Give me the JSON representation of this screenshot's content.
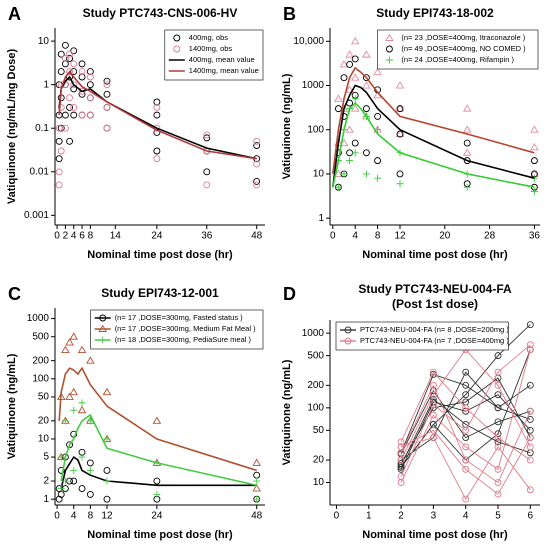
{
  "chart_data": [
    {
      "type": "line",
      "panel_label": "A",
      "title": "Study PTC743-CNS-006-HV",
      "xlabel": "Nominal time post dose (hr)",
      "ylabel": "Vatiquinone (ng/mL/mg Dose)",
      "xlim": [
        -0.5,
        50
      ],
      "xticks": [
        0,
        2,
        4,
        6,
        8,
        14,
        24,
        36,
        48
      ],
      "log_y": true,
      "ylim": [
        0.0006,
        20
      ],
      "yticks": [
        0.001,
        0.01,
        0.1,
        1,
        10
      ],
      "legend": "upper right",
      "series": [
        {
          "name": "400mg, obs",
          "color": "#000000",
          "mode": "markers",
          "marker": "circle",
          "x": [
            0.5,
            0.5,
            0.5,
            0.5,
            1,
            1,
            1,
            1,
            2,
            2,
            2,
            2,
            3,
            3,
            3,
            3,
            4,
            4,
            4,
            4,
            6,
            6,
            6,
            6,
            8,
            8,
            8,
            8,
            12,
            12,
            12,
            12,
            24,
            24,
            24,
            24,
            36,
            36,
            36,
            48,
            48,
            48
          ],
          "values": [
            0.02,
            0.05,
            0.2,
            1,
            0.1,
            0.5,
            2,
            5,
            0.2,
            1,
            3,
            8,
            0.3,
            1.5,
            4,
            0.05,
            0.2,
            0.8,
            2,
            6,
            0.2,
            0.6,
            1.5,
            3,
            0.2,
            0.5,
            1,
            2,
            0.1,
            0.3,
            0.6,
            1.2,
            0.03,
            0.08,
            0.2,
            0.4,
            0.01,
            0.03,
            0.06,
            0.006,
            0.02,
            0.04
          ]
        },
        {
          "name": "1400mg, obs",
          "color": "#e07a8f",
          "mode": "markers",
          "marker": "circle",
          "x": [
            0.5,
            0.5,
            0.5,
            1,
            1,
            1,
            2,
            2,
            2,
            3,
            3,
            3,
            4,
            4,
            4,
            6,
            6,
            6,
            8,
            8,
            8,
            12,
            12,
            12,
            24,
            24,
            24,
            36,
            36,
            36,
            48,
            48,
            48
          ],
          "values": [
            0.005,
            0.01,
            0.1,
            0.03,
            0.3,
            1,
            0.1,
            1,
            4,
            0.5,
            2,
            5,
            0.3,
            1,
            3,
            0.2,
            0.7,
            2,
            0.2,
            0.5,
            1.5,
            0.1,
            0.3,
            1,
            0.02,
            0.1,
            0.3,
            0.005,
            0.03,
            0.07,
            0.005,
            0.015,
            0.05
          ]
        },
        {
          "name": "400mg, mean value",
          "color": "#000000",
          "mode": "lines",
          "x": [
            0.5,
            1,
            2,
            3,
            4,
            6,
            8,
            12,
            24,
            36,
            48
          ],
          "values": [
            0.3,
            0.8,
            1.2,
            1.5,
            1.0,
            0.7,
            0.8,
            0.4,
            0.1,
            0.035,
            0.02
          ]
        },
        {
          "name": "1400mg, mean value",
          "color": "#b03a3a",
          "mode": "lines",
          "x": [
            0.5,
            1,
            2,
            3,
            4,
            6,
            8,
            12,
            24,
            36,
            48
          ],
          "values": [
            0.2,
            0.8,
            1.5,
            2,
            1.5,
            0.9,
            0.7,
            0.4,
            0.09,
            0.03,
            0.02
          ]
        }
      ]
    },
    {
      "type": "line",
      "panel_label": "B",
      "title": "Study EPI743-18-002",
      "xlabel": "Nominal time post dose (hr)",
      "ylabel": "Vatiquinone (ng/mL)",
      "xlim": [
        -0.5,
        37
      ],
      "xticks": [
        0,
        4,
        8,
        12,
        20,
        28,
        36
      ],
      "log_y": true,
      "ylim": [
        0.7,
        20000
      ],
      "yticks": [
        1,
        10,
        100,
        1000,
        {
          "value": 10000,
          "label": "10,000"
        }
      ],
      "legend": "upper right",
      "series": [
        {
          "name": "(n= 23 ,DOSE=400mg, Itraconazole )",
          "color": "#e38ca0",
          "mode": "markers",
          "marker": "triangle",
          "x": [
            1,
            1,
            1,
            2,
            2,
            2,
            3,
            3,
            3,
            4,
            4,
            4,
            6,
            6,
            6,
            8,
            8,
            8,
            12,
            12,
            12,
            24,
            24,
            24,
            36,
            36,
            36
          ],
          "values": [
            10,
            50,
            500,
            50,
            300,
            3000,
            100,
            800,
            5000,
            300,
            1500,
            10000,
            200,
            1000,
            5000,
            100,
            600,
            2000,
            80,
            300,
            1000,
            30,
            100,
            300,
            10,
            40,
            100
          ]
        },
        {
          "name": "(n= 49 ,DOSE=400mg, NO COMED )",
          "color": "#000000",
          "mode": "markers",
          "marker": "circle",
          "x": [
            1,
            1,
            1,
            2,
            2,
            2,
            3,
            3,
            3,
            4,
            4,
            4,
            6,
            6,
            6,
            8,
            8,
            8,
            12,
            12,
            12,
            24,
            24,
            24,
            36,
            36,
            36
          ],
          "values": [
            5,
            30,
            300,
            10,
            200,
            1500,
            30,
            400,
            3000,
            50,
            600,
            4000,
            30,
            300,
            1500,
            20,
            200,
            800,
            10,
            80,
            300,
            6,
            20,
            50,
            5,
            10,
            20
          ]
        },
        {
          "name": "(n= 24 ,DOSE=400mg, Rifampin )",
          "color": "#33cc33",
          "mode": "markers",
          "marker": "plus",
          "x": [
            1,
            1,
            2,
            2,
            3,
            3,
            4,
            4,
            6,
            6,
            8,
            8,
            12,
            12,
            24,
            24,
            36,
            36
          ],
          "values": [
            5,
            20,
            10,
            100,
            20,
            300,
            30,
            500,
            10,
            200,
            8,
            100,
            6,
            30,
            5,
            10,
            4,
            8
          ]
        },
        {
          "color": "#b5452f",
          "mode": "lines",
          "x": [
            0,
            1,
            2,
            3,
            4,
            5,
            6,
            8,
            12,
            24,
            36
          ],
          "values": [
            10,
            100,
            500,
            1500,
            2500,
            2000,
            1500,
            700,
            200,
            80,
            30
          ]
        },
        {
          "color": "#000000",
          "mode": "lines",
          "x": [
            0,
            1,
            2,
            3,
            4,
            5,
            6,
            8,
            12,
            24,
            36
          ],
          "values": [
            5,
            50,
            300,
            600,
            1000,
            900,
            700,
            300,
            100,
            20,
            8
          ]
        },
        {
          "color": "#33cc33",
          "mode": "lines",
          "x": [
            0,
            1,
            2,
            3,
            4,
            5,
            6,
            8,
            12,
            24,
            36
          ],
          "values": [
            5,
            20,
            100,
            300,
            400,
            300,
            200,
            80,
            30,
            10,
            5
          ]
        }
      ]
    },
    {
      "type": "line",
      "panel_label": "C",
      "title": "Study EPI743-12-001",
      "xlabel": "Nominal time post dose (hr)",
      "ylabel": "Vatiquinone (ng/mL)",
      "xlim": [
        -0.5,
        50
      ],
      "xticks": [
        0,
        4,
        8,
        12,
        24,
        48
      ],
      "log_y": true,
      "ylim": [
        0.8,
        1500
      ],
      "yticks": [
        1,
        2,
        5,
        10,
        20,
        50,
        100,
        200,
        500,
        1000
      ],
      "legend": "upper right",
      "series": [
        {
          "name": "(n= 17 ,DOSE=300mg, Fasted status )",
          "color": "#000000",
          "mode": "both",
          "marker": "circle",
          "x": [
            0.5,
            0.5,
            1,
            1,
            2,
            2,
            3,
            3,
            4,
            4,
            6,
            6,
            8,
            8,
            12,
            12,
            24,
            24,
            48,
            48
          ],
          "values": [
            1,
            1.5,
            1.2,
            3,
            1.5,
            5,
            2,
            8,
            2,
            12,
            1.5,
            6,
            1.2,
            4,
            1,
            3,
            1,
            2,
            1,
            2.5
          ],
          "line_x": [
            1,
            2,
            4,
            5,
            6,
            8,
            12,
            24,
            48
          ],
          "line_values": [
            1.5,
            3,
            5,
            4.5,
            3,
            2.5,
            2,
            1.7,
            1.7
          ]
        },
        {
          "name": "(n= 17 ,DOSE=300mg, Medium Fat Meal )",
          "color": "#b05030",
          "mode": "both",
          "marker": "triangle",
          "x": [
            1,
            1,
            2,
            2,
            3,
            3,
            4,
            4,
            6,
            6,
            8,
            8,
            12,
            12,
            24,
            24,
            48,
            48
          ],
          "values": [
            5,
            50,
            20,
            300,
            50,
            400,
            60,
            500,
            30,
            300,
            20,
            200,
            10,
            60,
            4,
            20,
            1.5,
            4
          ],
          "line_x": [
            0.5,
            1,
            2,
            3,
            4,
            5,
            6,
            8,
            12,
            24,
            48
          ],
          "line_values": [
            20,
            60,
            120,
            150,
            140,
            120,
            150,
            80,
            35,
            10,
            3
          ]
        },
        {
          "name": "(n= 18 ,DOSE=300mg, PediaSure meal )",
          "color": "#44cc44",
          "mode": "both",
          "marker": "plus",
          "x": [
            1,
            1,
            2,
            2,
            4,
            4,
            6,
            6,
            8,
            8,
            12,
            12,
            24,
            24,
            48,
            48
          ],
          "values": [
            1.5,
            5,
            2,
            20,
            3,
            30,
            5,
            40,
            3,
            20,
            2,
            10,
            1.2,
            4,
            1,
            2
          ],
          "line_x": [
            1,
            2,
            3,
            4,
            5,
            6,
            8,
            12,
            24,
            48
          ],
          "line_values": [
            2,
            5,
            8,
            10,
            15,
            20,
            25,
            7,
            4,
            1.7
          ]
        }
      ]
    },
    {
      "type": "line",
      "panel_label": "D",
      "title": "Study PTC743-NEU-004-FA",
      "subtitle": "(Post 1st dose)",
      "xlabel": "Nominal time post dose (hr)",
      "ylabel": "Vatiquinone (ng/mL)",
      "xlim": [
        -0.2,
        6.3
      ],
      "xticks": [
        0,
        1,
        2,
        3,
        4,
        5,
        6
      ],
      "log_y": true,
      "ylim": [
        5,
        1500
      ],
      "yticks": [
        10,
        20,
        50,
        100,
        200,
        500,
        1000
      ],
      "legend": "upper left",
      "series": [
        {
          "name": "PTC743-NEU-004-FA (n= 8 ,DOSE=200mg )",
          "color": "#333333",
          "mode": "both",
          "marker": "circle",
          "x": [
            2,
            3,
            4,
            5,
            6
          ],
          "values": [
            15,
            120,
            90,
            150,
            50
          ]
        },
        {
          "color": "#333333",
          "mode": "both",
          "marker": "circle",
          "x": [
            2,
            3,
            4,
            5,
            6
          ],
          "values": [
            25,
            280,
            200,
            100,
            70
          ]
        },
        {
          "color": "#333333",
          "mode": "both",
          "marker": "circle",
          "x": [
            2,
            3,
            4,
            5,
            6
          ],
          "values": [
            17,
            130,
            60,
            35,
            25
          ]
        },
        {
          "color": "#333333",
          "mode": "both",
          "marker": "circle",
          "x": [
            2,
            3,
            4,
            5,
            6
          ],
          "values": [
            16,
            60,
            150,
            500,
            1300
          ]
        },
        {
          "color": "#333333",
          "mode": "both",
          "marker": "circle",
          "x": [
            2,
            3,
            4,
            5,
            6
          ],
          "values": [
            24,
            170,
            40,
            65,
            90
          ]
        },
        {
          "color": "#333333",
          "mode": "both",
          "marker": "circle",
          "x": [
            2,
            3,
            4,
            5,
            6
          ],
          "values": [
            18,
            100,
            120,
            250,
            40
          ]
        },
        {
          "color": "#333333",
          "mode": "both",
          "marker": "circle",
          "x": [
            2,
            3,
            4,
            5,
            6
          ],
          "values": [
            20,
            40,
            300,
            100,
            200
          ]
        },
        {
          "color": "#333333",
          "mode": "both",
          "marker": "circle",
          "x": [
            2,
            3,
            4,
            5,
            6
          ],
          "values": [
            16,
            60,
            20,
            45,
            600
          ]
        },
        {
          "name": "PTC743-NEU-004-FA (n= 7 ,DOSE=400mg )",
          "color": "#e07a8a",
          "mode": "both",
          "marker": "circle",
          "x": [
            2,
            3,
            4,
            5,
            6
          ],
          "values": [
            30,
            40,
            6,
            30,
            8
          ]
        },
        {
          "color": "#e07a8a",
          "mode": "both",
          "marker": "circle",
          "x": [
            2,
            3,
            4,
            5,
            6
          ],
          "values": [
            20,
            150,
            600,
            200,
            30
          ]
        },
        {
          "color": "#e07a8a",
          "mode": "both",
          "marker": "circle",
          "x": [
            2,
            3,
            4,
            5,
            6
          ],
          "values": [
            35,
            300,
            100,
            40,
            20
          ]
        },
        {
          "color": "#e07a8a",
          "mode": "both",
          "marker": "circle",
          "x": [
            2,
            3,
            4,
            5,
            6
          ],
          "values": [
            12,
            110,
            50,
            300,
            700
          ]
        },
        {
          "color": "#e07a8a",
          "mode": "both",
          "marker": "circle",
          "x": [
            2,
            3,
            4,
            5,
            6
          ],
          "values": [
            10,
            80,
            30,
            15,
            600
          ]
        },
        {
          "color": "#e07a8a",
          "mode": "both",
          "marker": "circle",
          "x": [
            2,
            3,
            4,
            5,
            6
          ],
          "values": [
            25,
            200,
            20,
            10,
            90
          ]
        },
        {
          "color": "#e07a8a",
          "mode": "both",
          "marker": "circle",
          "x": [
            2,
            3,
            4,
            5,
            6
          ],
          "values": [
            30,
            50,
            15,
            7,
            40
          ]
        }
      ]
    }
  ]
}
